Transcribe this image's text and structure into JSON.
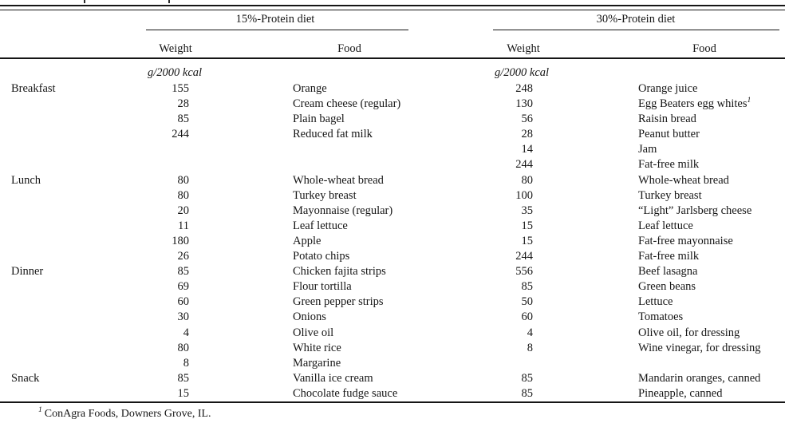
{
  "page": {
    "group_headers": {
      "left": "15%-Protein diet",
      "right": "30%-Protein diet"
    },
    "column_headers": {
      "weight": "Weight",
      "food": "Food"
    },
    "units_label": "g/2000 kcal",
    "rows": [
      {
        "meal": "Breakfast",
        "w15": "155",
        "f15": "Orange",
        "w30": "248",
        "f30": "Orange juice"
      },
      {
        "meal": "",
        "w15": "28",
        "f15": "Cream cheese (regular)",
        "w30": "130",
        "f30": "Egg Beaters egg whites",
        "f30_sup": "1"
      },
      {
        "meal": "",
        "w15": "85",
        "f15": "Plain bagel",
        "w30": "56",
        "f30": "Raisin bread"
      },
      {
        "meal": "",
        "w15": "244",
        "f15": "Reduced fat milk",
        "w30": "28",
        "f30": "Peanut butter"
      },
      {
        "meal": "",
        "w15": "",
        "f15": "",
        "w30": "14",
        "f30": "Jam"
      },
      {
        "meal": "",
        "w15": "",
        "f15": "",
        "w30": "244",
        "f30": "Fat-free milk"
      },
      {
        "meal": "Lunch",
        "w15": "80",
        "f15": "Whole-wheat bread",
        "w30": "80",
        "f30": "Whole-wheat bread"
      },
      {
        "meal": "",
        "w15": "80",
        "f15": "Turkey breast",
        "w30": "100",
        "f30": "Turkey breast"
      },
      {
        "meal": "",
        "w15": "20",
        "f15": "Mayonnaise (regular)",
        "w30": "35",
        "f30": "“Light” Jarlsberg cheese"
      },
      {
        "meal": "",
        "w15": "11",
        "f15": "Leaf lettuce",
        "w30": "15",
        "f30": "Leaf lettuce"
      },
      {
        "meal": "",
        "w15": "180",
        "f15": "Apple",
        "w30": "15",
        "f30": "Fat-free mayonnaise"
      },
      {
        "meal": "",
        "w15": "26",
        "f15": "Potato chips",
        "w30": "244",
        "f30": "Fat-free milk"
      },
      {
        "meal": "Dinner",
        "w15": "85",
        "f15": "Chicken fajita strips",
        "w30": "556",
        "f30": "Beef lasagna"
      },
      {
        "meal": "",
        "w15": "69",
        "f15": "Flour tortilla",
        "w30": "85",
        "f30": "Green beans"
      },
      {
        "meal": "",
        "w15": "60",
        "f15": "Green pepper strips",
        "w30": "50",
        "f30": "Lettuce"
      },
      {
        "meal": "",
        "w15": "30",
        "f15": "Onions",
        "w30": "60",
        "f30": "Tomatoes"
      },
      {
        "meal": "",
        "w15": "4",
        "f15": "Olive oil",
        "w30": "4",
        "f30": "Olive oil, for dressing"
      },
      {
        "meal": "",
        "w15": "80",
        "f15": "White rice",
        "w30": "8",
        "f30": "Wine vinegar, for dressing"
      },
      {
        "meal": "",
        "w15": "8",
        "f15": "Margarine",
        "w30": "",
        "f30": ""
      },
      {
        "meal": "Snack",
        "w15": "85",
        "f15": "Vanilla ice cream",
        "w30": "85",
        "f30": "Mandarin oranges, canned"
      },
      {
        "meal": "",
        "w15": "15",
        "f15": "Chocolate fudge sauce",
        "w30": "85",
        "f30": "Pineapple, canned"
      }
    ],
    "footnote": {
      "marker": "1",
      "text": "ConAgra Foods, Downers Grove, IL."
    }
  }
}
